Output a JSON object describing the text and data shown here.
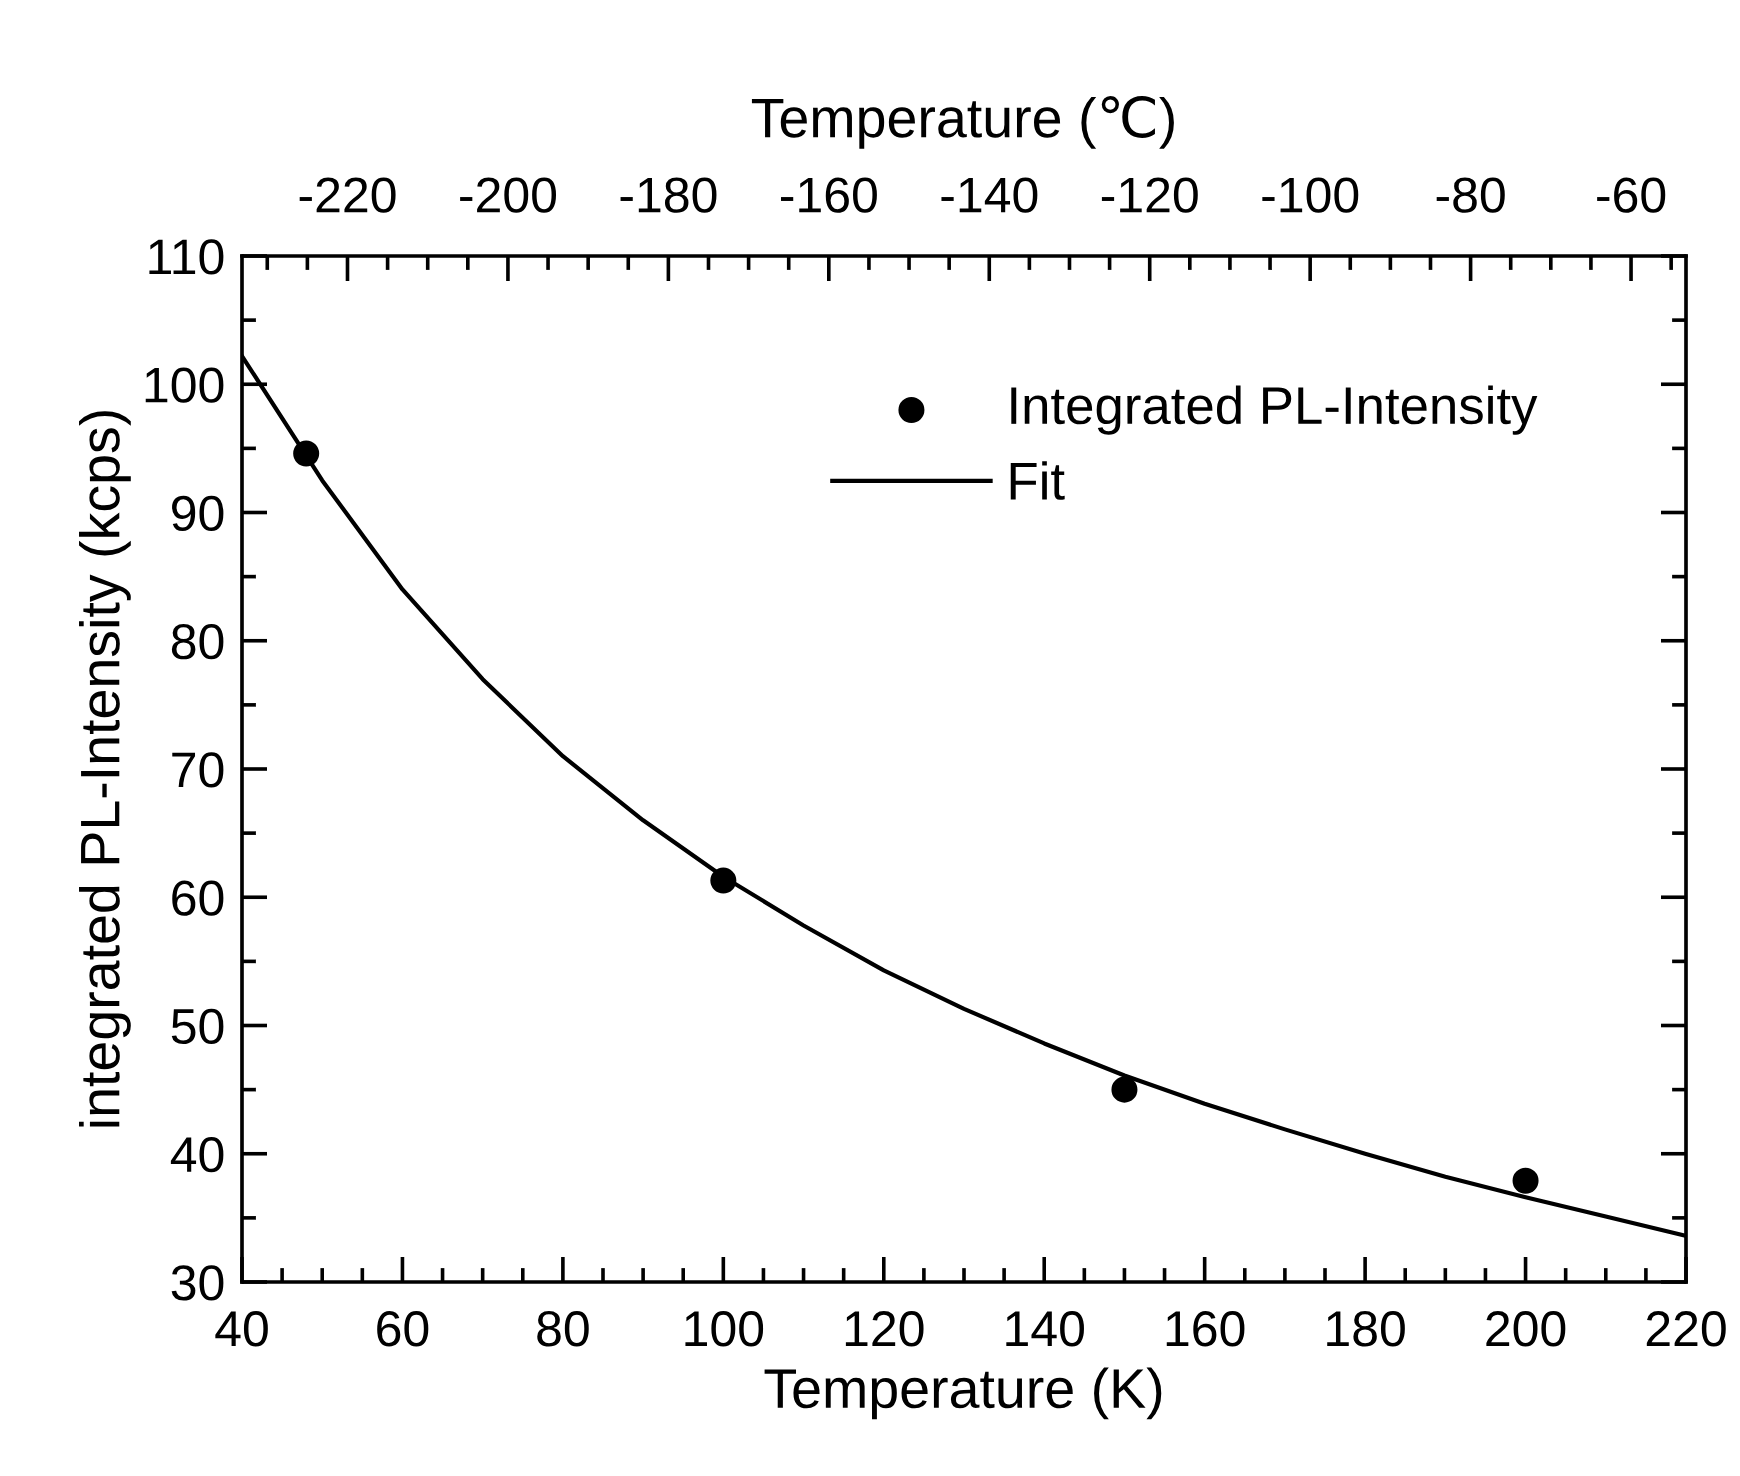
{
  "chart_data": {
    "type": "scatter",
    "xlabel": "Temperature (K)",
    "ylabel": "integrated PL-Intensity (kcps)",
    "x2label": "Temperature (℃)",
    "xlim": [
      40,
      220
    ],
    "xticks": [
      40,
      60,
      80,
      100,
      120,
      140,
      160,
      180,
      200,
      220
    ],
    "ylim": [
      30,
      110
    ],
    "yticks": [
      30,
      40,
      50,
      60,
      70,
      80,
      90,
      100,
      110
    ],
    "x2lim": [
      -233.15,
      -53.15
    ],
    "x2ticks": [
      -220,
      -200,
      -180,
      -160,
      -140,
      -120,
      -100,
      -80,
      -60
    ],
    "grid": false,
    "legend": "top right",
    "series": [
      {
        "name": "Integrated PL-Intensity",
        "marker": "circle",
        "color": "#000000",
        "x": [
          48,
          100,
          150,
          200
        ],
        "values": [
          94.6,
          61.3,
          45.0,
          37.9
        ]
      },
      {
        "name": "Fit",
        "type": "line",
        "marker": "none",
        "line_style": "solid",
        "color": "#000000",
        "x": [
          40,
          50,
          60,
          70,
          80,
          90,
          100,
          110,
          120,
          130,
          140,
          150,
          160,
          170,
          180,
          190,
          200,
          210,
          220
        ],
        "values": [
          102.2,
          92.5,
          84.0,
          77.0,
          71.0,
          66.0,
          61.6,
          57.8,
          54.3,
          51.3,
          48.6,
          46.1,
          43.9,
          41.9,
          40.0,
          38.2,
          36.6,
          35.1,
          33.6
        ]
      }
    ]
  }
}
